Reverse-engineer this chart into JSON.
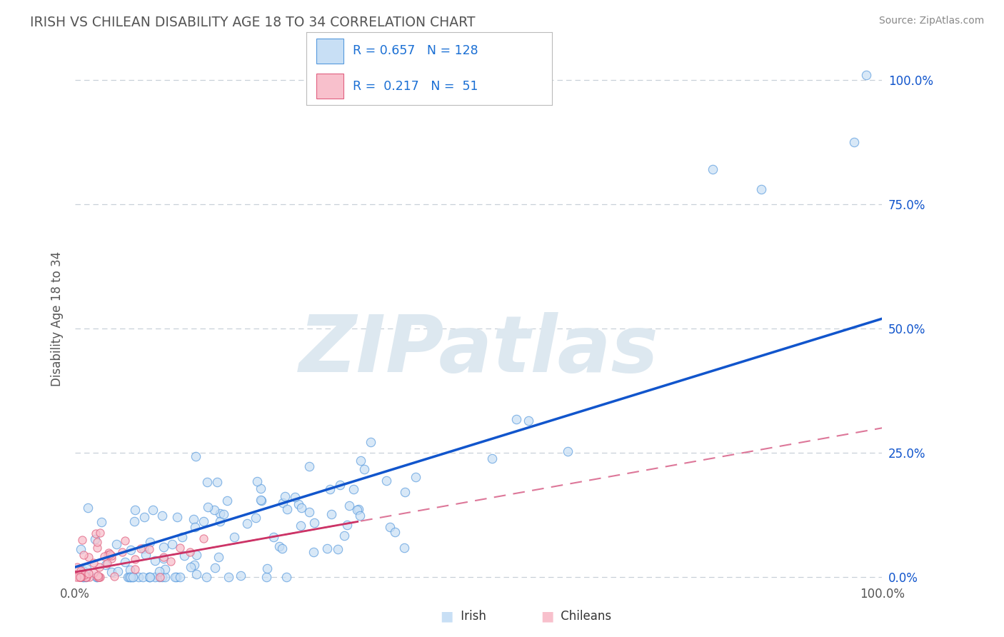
{
  "title": "IRISH VS CHILEAN DISABILITY AGE 18 TO 34 CORRELATION CHART",
  "source_text": "Source: ZipAtlas.com",
  "ylabel": "Disability Age 18 to 34",
  "xlim": [
    0,
    1
  ],
  "ylim": [
    -0.01,
    1.05
  ],
  "ytick_vals": [
    0.0,
    0.25,
    0.5,
    0.75,
    1.0
  ],
  "ytick_labels": [
    "0.0%",
    "25.0%",
    "50.0%",
    "75.0%",
    "100.0%"
  ],
  "xtick_vals": [
    0.0,
    1.0
  ],
  "xtick_labels": [
    "0.0%",
    "100.0%"
  ],
  "R_irish": 0.657,
  "N_irish": 128,
  "R_chilean": 0.217,
  "N_chilean": 51,
  "irish_face_color": "#c8dff5",
  "irish_edge_color": "#5599dd",
  "chilean_face_color": "#f8c0cc",
  "chilean_edge_color": "#e06080",
  "irish_line_color": "#1155cc",
  "chilean_line_color": "#cc3366",
  "chilean_dash_color": "#dd7799",
  "axis_label_color": "#1155cc",
  "title_color": "#555555",
  "source_color": "#888888",
  "legend_text_color": "#1a6fd4",
  "background_color": "#ffffff",
  "grid_color": "#c8d0d8",
  "watermark_color": "#dde8f0",
  "watermark_text": "ZIPatlas"
}
